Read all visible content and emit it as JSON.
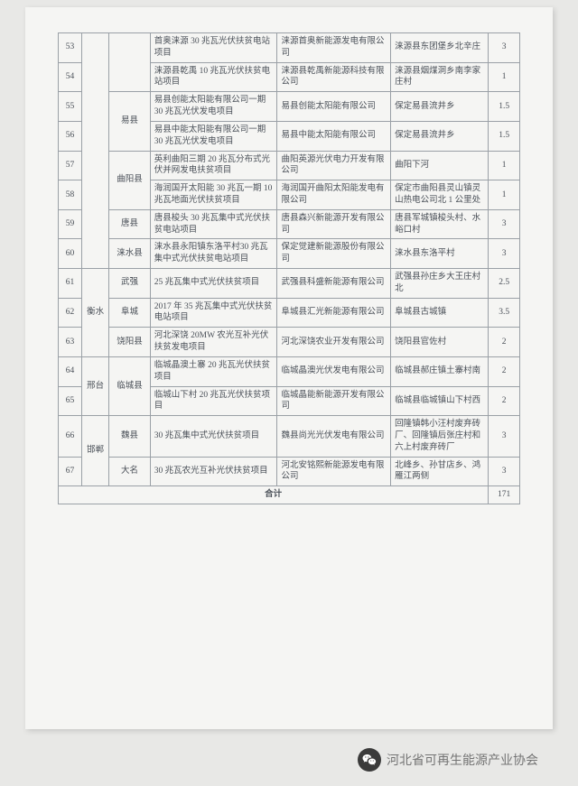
{
  "table": {
    "text_color": "#4a5058",
    "border_color": "#9aa0a6",
    "font_size": 9.5,
    "rows": [
      {
        "idx": "53",
        "city": "",
        "county": "",
        "project": "首奥涞源 30 兆瓦光伏扶贫电站项目",
        "company": "涞源首奥新能源发电有限公司",
        "location": "涞源县东团堡乡北辛庄",
        "value": "3"
      },
      {
        "idx": "54",
        "city": "",
        "county": "",
        "project": "涞源县乾禹 10 兆瓦光伏扶贫电站项目",
        "company": "涞源县乾禹新能源科技有限公司",
        "location": "涞源县烟煤洞乡南李家庄村",
        "value": "1"
      },
      {
        "idx": "55",
        "city": "",
        "county": "易县",
        "project": "易县创能太阳能有限公司一期 30 兆瓦光伏发电项目",
        "company": "易县创能太阳能有限公司",
        "location": "保定易县流井乡",
        "value": "1.5"
      },
      {
        "idx": "56",
        "city": "",
        "county": "",
        "project": "易县中能太阳能有限公司一期 30 兆瓦光伏发电项目",
        "company": "易县中能太阳能有限公司",
        "location": "保定易县流井乡",
        "value": "1.5"
      },
      {
        "idx": "57",
        "city": "",
        "county": "曲阳县",
        "project": "英利曲阳三期 20 兆瓦分布式光伏并网发电扶贫项目",
        "company": "曲阳英源光伏电力开发有限公司",
        "location": "曲阳下河",
        "value": "1"
      },
      {
        "idx": "58",
        "city": "",
        "county": "",
        "project": "海润国开太阳能 30 兆瓦一期 10 兆瓦地面光伏扶贫项目",
        "company": "海润国开曲阳太阳能发电有限公司",
        "location": "保定市曲阳县灵山镇灵山热电公司北 1 公里处",
        "value": "1"
      },
      {
        "idx": "59",
        "city": "",
        "county": "唐县",
        "project": "唐县梭头 30 兆瓦集中式光伏扶贫电站项目",
        "company": "唐县森兴新能源开发有限公司",
        "location": "唐县军城镇梭头村、水峪口村",
        "value": "3"
      },
      {
        "idx": "60",
        "city": "",
        "county": "涞水县",
        "project": "涞水县永阳镇东洛平村30 兆瓦集中式光伏扶贫电站项目",
        "company": "保定觉建新能源股份有限公司",
        "location": "涞水县东洛平村",
        "value": "3"
      },
      {
        "idx": "61",
        "city": "衡水",
        "county": "武强",
        "project": "25 兆瓦集中式光伏扶贫项目",
        "company": "武强县科盛新能源有限公司",
        "location": "武强县孙庄乡大王庄村北",
        "value": "2.5"
      },
      {
        "idx": "62",
        "city": "",
        "county": "阜城",
        "project": "2017 年 35 兆瓦集中式光伏扶贫电站项目",
        "company": "阜城县汇光新能源有限公司",
        "location": "阜城县古城镇",
        "value": "3.5"
      },
      {
        "idx": "63",
        "city": "",
        "county": "饶阳县",
        "project": "河北深饶 20MW 农光互补光伏扶贫发电项目",
        "company": "河北深饶农业开发有限公司",
        "location": "饶阳县官佐村",
        "value": "2"
      },
      {
        "idx": "64",
        "city": "邢台",
        "county": "临城县",
        "project": "临城晶澳土寨 20 兆瓦光伏扶贫项目",
        "company": "临城晶澳光伏发电有限公司",
        "location": "临城县郝庄镇土寨村南",
        "value": "2"
      },
      {
        "idx": "65",
        "city": "",
        "county": "",
        "project": "临城山下村 20 兆瓦光伏扶贫项目",
        "company": "临城晶能新能源开发有限公司",
        "location": "临城县临城镇山下村西",
        "value": "2"
      },
      {
        "idx": "66",
        "city": "邯郸",
        "county": "魏县",
        "project": "30 兆瓦集中式光伏扶贫项目",
        "company": "魏县尚光光伏发电有限公司",
        "location": "回隆镇韩小汪村废弃砖厂、回隆镇后张庄村和六上村废弃砖厂",
        "value": "3"
      },
      {
        "idx": "67",
        "city": "",
        "county": "大名",
        "project": "30 兆瓦农光互补光伏扶贫项目",
        "company": "河北安铭熙新能源发电有限公司",
        "location": "北峰乡、孙甘店乡、鸿雁江两侧",
        "value": "3"
      }
    ],
    "merges": {
      "county_yixian_rowspan": 2,
      "county_quyang_rowspan": 2,
      "city_hengshui_rowspan": 3,
      "city_xingtai_rowspan": 2,
      "county_lincheng_rowspan": 2,
      "city_handan_rowspan": 2,
      "empty_city_top_rowspan": 8
    },
    "sum_label": "合计",
    "sum_value": "171"
  },
  "footer": {
    "brand_text": "河北省可再生能源产业协会",
    "icon_bg": "#3a3a3a",
    "icon_fg": "#ffffff",
    "text_color": "#747474"
  }
}
